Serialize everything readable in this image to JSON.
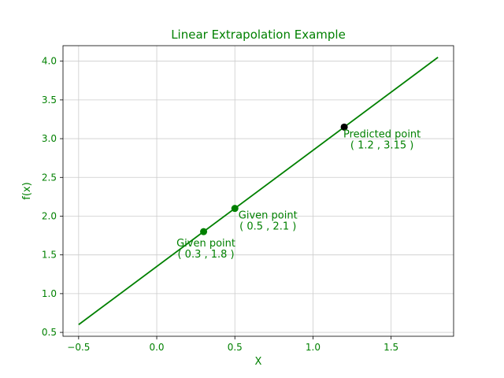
{
  "chart_data": {
    "type": "line",
    "title": "Linear Extrapolation Example",
    "xlabel": "X",
    "ylabel": "f(x)",
    "xlim": [
      -0.6,
      1.9
    ],
    "ylim": [
      0.45,
      4.2
    ],
    "xticks": [
      -0.5,
      0.0,
      0.5,
      1.0,
      1.5
    ],
    "xtick_labels": [
      "−0.5",
      "0.0",
      "0.5",
      "1.0",
      "1.5"
    ],
    "yticks": [
      0.5,
      1.0,
      1.5,
      2.0,
      2.5,
      3.0,
      3.5,
      4.0
    ],
    "ytick_labels": [
      "0.5",
      "1.0",
      "1.5",
      "2.0",
      "2.5",
      "3.0",
      "3.5",
      "4.0"
    ],
    "grid": true,
    "line": {
      "x": [
        -0.5,
        1.8
      ],
      "y": [
        0.6,
        4.05
      ],
      "color": "#008000"
    },
    "points": [
      {
        "x": 0.3,
        "y": 1.8,
        "color": "#008000",
        "label_line1": "Given point",
        "label_line2": "( 0.3 , 1.8 )",
        "label_position": "below"
      },
      {
        "x": 0.5,
        "y": 2.1,
        "color": "#008000",
        "label_line1": "Given point",
        "label_line2": "( 0.5 , 2.1 )",
        "label_position": "below-right"
      },
      {
        "x": 1.2,
        "y": 3.15,
        "color": "#000000",
        "label_line1": "Predicted point",
        "label_line2": "( 1.2 , 3.15 )",
        "label_position": "below-right"
      }
    ],
    "colors": {
      "text": "#008000",
      "grid": "#cccccc",
      "frame": "#000000"
    }
  }
}
